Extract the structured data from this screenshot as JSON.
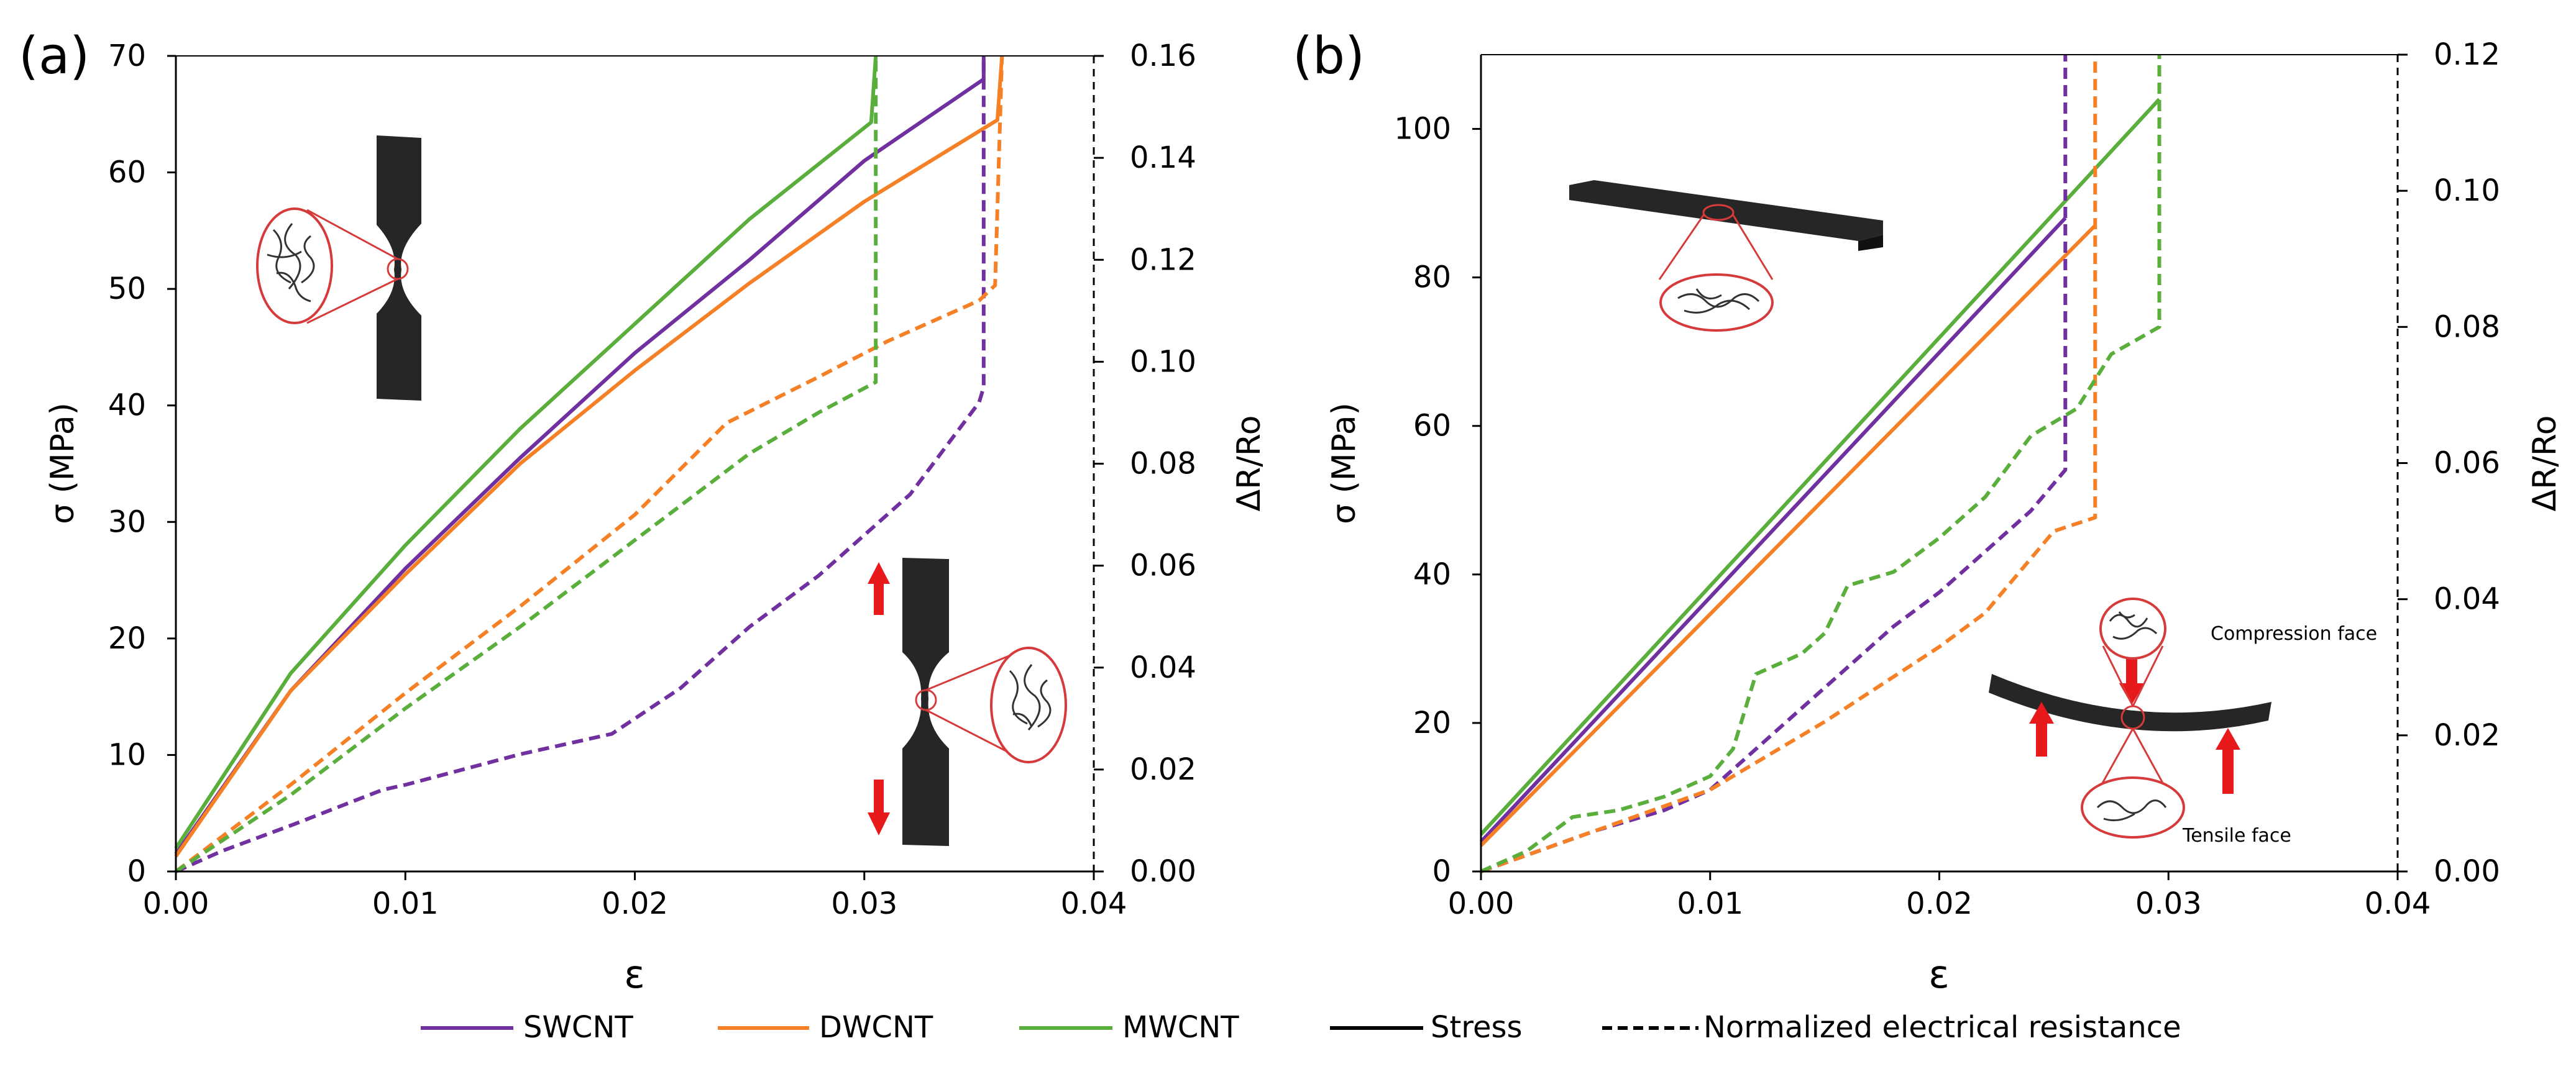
{
  "colors": {
    "SWCNT": "#7030A0",
    "DWCNT": "#F58026",
    "MWCNT": "#5AAE3C",
    "axis": "#000000",
    "inset_body": "#262626",
    "inset_circle": "#D63A3A",
    "arrow": "#E8191B"
  },
  "legend": {
    "items": [
      {
        "label": "SWCNT",
        "style": "solid",
        "color": "#7030A0"
      },
      {
        "label": "DWCNT",
        "style": "solid",
        "color": "#F58026"
      },
      {
        "label": "MWCNT",
        "style": "solid",
        "color": "#5AAE3C"
      },
      {
        "label": "Stress",
        "style": "solid",
        "color": "#000000"
      },
      {
        "label": "Normalized electrical resistance",
        "style": "dashed",
        "color": "#000000"
      }
    ]
  },
  "chart_data": [
    {
      "panel_label": "(a)",
      "type": "line",
      "xlabel": "ε",
      "ylabel": "σ (MPa)",
      "y2label": "ΔR/Ro",
      "xlim": [
        0,
        0.04
      ],
      "ylim": [
        0,
        70
      ],
      "y2lim": [
        0,
        0.16
      ],
      "xticks": [
        "0.00",
        "0.01",
        "0.02",
        "0.03",
        "0.04"
      ],
      "yticks": [
        "0",
        "10",
        "20",
        "30",
        "40",
        "50",
        "60",
        "70"
      ],
      "y2ticks": [
        "0.00",
        "0.02",
        "0.04",
        "0.06",
        "0.08",
        "0.10",
        "0.12",
        "0.14",
        "0.16"
      ],
      "inset": "tensile",
      "series": [
        {
          "name": "SWCNT",
          "kind": "stress",
          "axis": "y",
          "points": [
            [
              0,
              1.5
            ],
            [
              0.005,
              15.5
            ],
            [
              0.01,
              26
            ],
            [
              0.015,
              35.5
            ],
            [
              0.02,
              44.5
            ],
            [
              0.025,
              52.5
            ],
            [
              0.03,
              61
            ],
            [
              0.0352,
              68
            ],
            [
              0.0352,
              70
            ]
          ]
        },
        {
          "name": "DWCNT",
          "kind": "stress",
          "axis": "y",
          "points": [
            [
              0,
              1.3
            ],
            [
              0.005,
              15.5
            ],
            [
              0.01,
              25.5
            ],
            [
              0.015,
              35
            ],
            [
              0.02,
              43
            ],
            [
              0.025,
              50.5
            ],
            [
              0.03,
              57.5
            ],
            [
              0.0358,
              64.5
            ],
            [
              0.036,
              70
            ]
          ]
        },
        {
          "name": "MWCNT",
          "kind": "stress",
          "axis": "y",
          "points": [
            [
              0,
              2
            ],
            [
              0.005,
              17
            ],
            [
              0.01,
              28
            ],
            [
              0.015,
              38
            ],
            [
              0.02,
              47
            ],
            [
              0.025,
              56
            ],
            [
              0.0303,
              64.3
            ],
            [
              0.0305,
              70
            ]
          ]
        },
        {
          "name": "SWCNT",
          "kind": "resistance",
          "axis": "y2",
          "points": [
            [
              0,
              0
            ],
            [
              0.002,
              0.004
            ],
            [
              0.005,
              0.009
            ],
            [
              0.009,
              0.016
            ],
            [
              0.01,
              0.017
            ],
            [
              0.015,
              0.023
            ],
            [
              0.019,
              0.027
            ],
            [
              0.022,
              0.036
            ],
            [
              0.025,
              0.048
            ],
            [
              0.028,
              0.058
            ],
            [
              0.03,
              0.066
            ],
            [
              0.032,
              0.074
            ],
            [
              0.035,
              0.092
            ],
            [
              0.0352,
              0.095
            ],
            [
              0.0352,
              0.16
            ]
          ]
        },
        {
          "name": "DWCNT",
          "kind": "resistance",
          "axis": "y2",
          "points": [
            [
              0,
              0
            ],
            [
              0.005,
              0.017
            ],
            [
              0.01,
              0.035
            ],
            [
              0.015,
              0.052
            ],
            [
              0.02,
              0.07
            ],
            [
              0.024,
              0.088
            ],
            [
              0.028,
              0.097
            ],
            [
              0.031,
              0.104
            ],
            [
              0.035,
              0.112
            ],
            [
              0.0357,
              0.115
            ],
            [
              0.036,
              0.16
            ]
          ]
        },
        {
          "name": "MWCNT",
          "kind": "resistance",
          "axis": "y2",
          "points": [
            [
              0,
              0
            ],
            [
              0.005,
              0.015
            ],
            [
              0.01,
              0.032
            ],
            [
              0.015,
              0.048
            ],
            [
              0.02,
              0.065
            ],
            [
              0.025,
              0.082
            ],
            [
              0.028,
              0.09
            ],
            [
              0.0305,
              0.096
            ],
            [
              0.0305,
              0.16
            ]
          ]
        }
      ]
    },
    {
      "panel_label": "(b)",
      "type": "line",
      "xlabel": "ε",
      "ylabel": "σ (MPa)",
      "y2label": "ΔR/Ro",
      "xlim": [
        0,
        0.04
      ],
      "ylim": [
        0,
        110
      ],
      "y2lim": [
        0,
        0.12
      ],
      "xticks": [
        "0.00",
        "0.01",
        "0.02",
        "0.03",
        "0.04"
      ],
      "yticks": [
        "0",
        "20",
        "40",
        "60",
        "80",
        "100"
      ],
      "y2ticks": [
        "0.00",
        "0.02",
        "0.04",
        "0.06",
        "0.08",
        "0.10",
        "0.12"
      ],
      "inset": "flexural",
      "inset_labels": {
        "compression": "Compression face",
        "tensile": "Tensile face"
      },
      "series": [
        {
          "name": "SWCNT",
          "kind": "stress",
          "axis": "y",
          "points": [
            [
              0,
              4
            ],
            [
              0.0255,
              88
            ]
          ]
        },
        {
          "name": "DWCNT",
          "kind": "stress",
          "axis": "y",
          "points": [
            [
              0,
              3.5
            ],
            [
              0.0268,
              87
            ]
          ]
        },
        {
          "name": "MWCNT",
          "kind": "stress",
          "axis": "y",
          "points": [
            [
              0,
              5
            ],
            [
              0.0296,
              104
            ]
          ]
        },
        {
          "name": "SWCNT",
          "kind": "resistance",
          "axis": "y2",
          "points": [
            [
              0,
              0
            ],
            [
              0.005,
              0.006
            ],
            [
              0.008,
              0.009
            ],
            [
              0.01,
              0.012
            ],
            [
              0.012,
              0.018
            ],
            [
              0.015,
              0.027
            ],
            [
              0.018,
              0.036
            ],
            [
              0.02,
              0.041
            ],
            [
              0.022,
              0.047
            ],
            [
              0.024,
              0.053
            ],
            [
              0.0255,
              0.059
            ],
            [
              0.0255,
              0.12
            ]
          ]
        },
        {
          "name": "DWCNT",
          "kind": "resistance",
          "axis": "y2",
          "points": [
            [
              0,
              0
            ],
            [
              0.005,
              0.006
            ],
            [
              0.01,
              0.012
            ],
            [
              0.012,
              0.016
            ],
            [
              0.015,
              0.022
            ],
            [
              0.02,
              0.033
            ],
            [
              0.022,
              0.038
            ],
            [
              0.025,
              0.05
            ],
            [
              0.0268,
              0.052
            ],
            [
              0.0268,
              0.12
            ]
          ]
        },
        {
          "name": "MWCNT",
          "kind": "resistance",
          "axis": "y2",
          "points": [
            [
              0,
              0
            ],
            [
              0.002,
              0.003
            ],
            [
              0.004,
              0.008
            ],
            [
              0.006,
              0.009
            ],
            [
              0.008,
              0.011
            ],
            [
              0.01,
              0.014
            ],
            [
              0.011,
              0.018
            ],
            [
              0.012,
              0.029
            ],
            [
              0.014,
              0.032
            ],
            [
              0.015,
              0.035
            ],
            [
              0.016,
              0.042
            ],
            [
              0.018,
              0.044
            ],
            [
              0.02,
              0.049
            ],
            [
              0.022,
              0.055
            ],
            [
              0.024,
              0.064
            ],
            [
              0.026,
              0.068
            ],
            [
              0.0275,
              0.076
            ],
            [
              0.0296,
              0.08
            ],
            [
              0.0296,
              0.12
            ]
          ]
        }
      ]
    }
  ]
}
